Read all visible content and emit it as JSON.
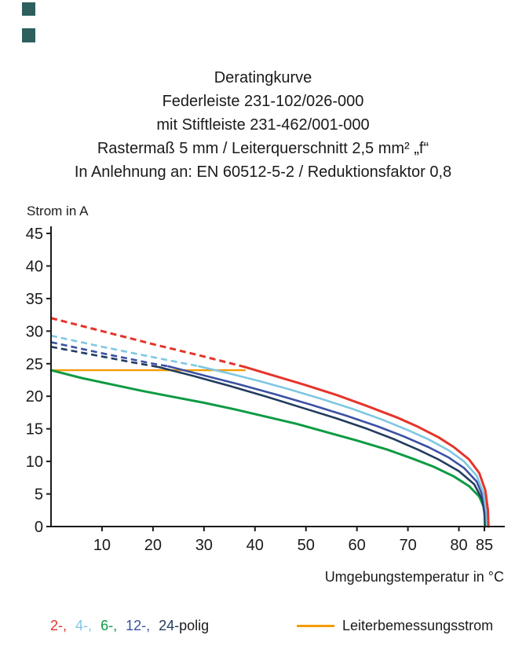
{
  "brand": {
    "mark_color": "#2c5f5d"
  },
  "title": {
    "lines": [
      "Deratingkurve",
      "Federleiste 231-102/026-000",
      "mit Stiftleiste 231-462/001-000",
      "Rastermaß 5 mm / Leiterquerschnitt 2,5 mm² „f“",
      "In Anlehnung an: EN 60512-5-2 / Reduktionsfaktor 0,8"
    ]
  },
  "chart_data": {
    "type": "line",
    "title": "Deratingkurve",
    "xlabel": "Umgebungstemperatur in °C",
    "ylabel": "Strom in A",
    "xlim": [
      0,
      88.5
    ],
    "ylim": [
      0,
      45
    ],
    "xticks": [
      10,
      20,
      30,
      40,
      50,
      60,
      70,
      80,
      85
    ],
    "yticks": [
      0,
      5,
      10,
      15,
      20,
      25,
      30,
      35,
      40,
      45
    ],
    "grid": false,
    "axis_color": "#1a1a1a",
    "series": [
      {
        "name": "Leiterbemessungsstrom",
        "color": "#f59c00",
        "width": 2.4,
        "points": [
          [
            0,
            24
          ],
          [
            38,
            24
          ]
        ]
      },
      {
        "name": "6-polig",
        "color": "#0d9b43",
        "width": 3,
        "points": [
          [
            0,
            24
          ],
          [
            6,
            22.8
          ],
          [
            12,
            21.8
          ],
          [
            18,
            20.8
          ],
          [
            24,
            19.9
          ],
          [
            30,
            19
          ],
          [
            36,
            18
          ],
          [
            42,
            16.9
          ],
          [
            48,
            15.8
          ],
          [
            54,
            14.5
          ],
          [
            60,
            13.2
          ],
          [
            66,
            11.8
          ],
          [
            71,
            10.4
          ],
          [
            75,
            9.2
          ],
          [
            79,
            7.7
          ],
          [
            82,
            6.2
          ],
          [
            84,
            4.6
          ],
          [
            85,
            2.8
          ],
          [
            85.1,
            0
          ]
        ]
      },
      {
        "name": "24-polig",
        "color": "#223c5f",
        "width": 2.6,
        "dashed_points": [
          [
            0,
            27.6
          ],
          [
            8,
            26.4
          ],
          [
            16,
            25.2
          ],
          [
            21,
            24.5
          ]
        ],
        "points": [
          [
            21,
            24.5
          ],
          [
            28,
            23.1
          ],
          [
            35,
            21.6
          ],
          [
            42,
            20
          ],
          [
            49,
            18.3
          ],
          [
            56,
            16.6
          ],
          [
            62,
            15
          ],
          [
            67,
            13.5
          ],
          [
            72,
            11.8
          ],
          [
            76,
            10.3
          ],
          [
            80,
            8.5
          ],
          [
            83,
            6.5
          ],
          [
            84.6,
            4.1
          ],
          [
            85.1,
            1.5
          ],
          [
            85.2,
            0
          ]
        ]
      },
      {
        "name": "12-polig",
        "color": "#3a51a3",
        "width": 2.6,
        "dashed_points": [
          [
            0,
            28.3
          ],
          [
            10,
            26.6
          ],
          [
            20,
            25
          ],
          [
            23,
            24.6
          ]
        ],
        "points": [
          [
            23,
            24.6
          ],
          [
            30,
            23.2
          ],
          [
            37,
            21.8
          ],
          [
            44,
            20.3
          ],
          [
            51,
            18.7
          ],
          [
            58,
            17
          ],
          [
            64,
            15.4
          ],
          [
            69,
            13.9
          ],
          [
            74,
            12.2
          ],
          [
            78,
            10.6
          ],
          [
            81,
            9
          ],
          [
            83.5,
            6.9
          ],
          [
            84.8,
            4.4
          ],
          [
            85.3,
            1.8
          ],
          [
            85.4,
            0
          ]
        ]
      },
      {
        "name": "4-polig",
        "color": "#7ec7e3",
        "width": 2.6,
        "dashed_points": [
          [
            0,
            29.3
          ],
          [
            10,
            27.6
          ],
          [
            20,
            26
          ],
          [
            29,
            24.6
          ]
        ],
        "points": [
          [
            29,
            24.6
          ],
          [
            35,
            23.5
          ],
          [
            41,
            22.3
          ],
          [
            47,
            21
          ],
          [
            53,
            19.6
          ],
          [
            59,
            18.1
          ],
          [
            65,
            16.4
          ],
          [
            70,
            14.8
          ],
          [
            74,
            13.4
          ],
          [
            78,
            11.7
          ],
          [
            81,
            10
          ],
          [
            83.5,
            7.8
          ],
          [
            84.8,
            5.2
          ],
          [
            85.4,
            2.2
          ],
          [
            85.5,
            0
          ]
        ]
      },
      {
        "name": "2-polig",
        "color": "#e5342a",
        "width": 3,
        "dashed_points": [
          [
            0,
            32
          ],
          [
            10,
            30
          ],
          [
            20,
            28
          ],
          [
            30,
            26.1
          ],
          [
            38,
            24.5
          ]
        ],
        "points": [
          [
            38,
            24.5
          ],
          [
            44,
            23.1
          ],
          [
            50,
            21.7
          ],
          [
            56,
            20.2
          ],
          [
            62,
            18.5
          ],
          [
            68,
            16.7
          ],
          [
            72,
            15.3
          ],
          [
            76,
            13.7
          ],
          [
            79,
            12.2
          ],
          [
            82,
            10.3
          ],
          [
            84,
            8.2
          ],
          [
            85.2,
            5.5
          ],
          [
            85.7,
            2.5
          ],
          [
            85.8,
            0
          ]
        ]
      }
    ]
  },
  "legend": {
    "pole_tokens": [
      {
        "label": "2-,",
        "color": "#e5342a"
      },
      {
        "label": "4-,",
        "color": "#7ec7e3"
      },
      {
        "label": "6-,",
        "color": "#0d9b43"
      },
      {
        "label": "12-,",
        "color": "#3a51a3"
      },
      {
        "label": "24-",
        "color": "#223c5f"
      },
      {
        "label": "polig",
        "color": "#1a1a1a"
      }
    ],
    "rated_current_label": "Leiterbemessungsstrom",
    "rated_current_color": "#f59c00"
  }
}
